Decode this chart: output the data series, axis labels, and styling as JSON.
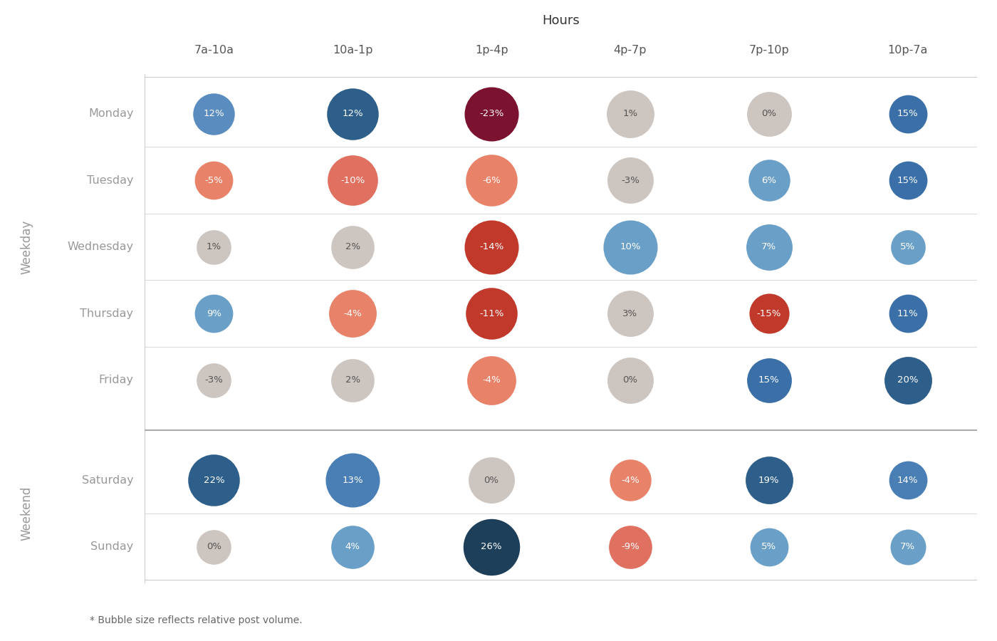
{
  "title": "Hours",
  "weekday_label": "Weekday",
  "weekend_label": "Weekend",
  "footnote": "* Bubble size reflects relative post volume.",
  "columns": [
    "7a-10a",
    "10a-1p",
    "1p-4p",
    "4p-7p",
    "7p-10p",
    "10p-7a"
  ],
  "rows": [
    "Monday",
    "Tuesday",
    "Wednesday",
    "Thursday",
    "Friday",
    "Saturday",
    "Sunday"
  ],
  "values": [
    [
      12,
      12,
      -23,
      1,
      0,
      15
    ],
    [
      -5,
      -10,
      -6,
      -3,
      6,
      15
    ],
    [
      1,
      2,
      -14,
      10,
      7,
      5
    ],
    [
      9,
      -4,
      -11,
      3,
      -15,
      11
    ],
    [
      -3,
      2,
      -4,
      0,
      15,
      20
    ],
    [
      22,
      13,
      0,
      -4,
      19,
      14
    ],
    [
      0,
      4,
      26,
      -9,
      5,
      7
    ]
  ],
  "bubble_sizes": [
    [
      1300,
      2000,
      2200,
      1700,
      1500,
      1100
    ],
    [
      1100,
      1900,
      2000,
      1600,
      1300,
      1100
    ],
    [
      900,
      1400,
      2200,
      2200,
      1600,
      900
    ],
    [
      1100,
      1700,
      2000,
      1600,
      1200,
      1100
    ],
    [
      900,
      1400,
      1800,
      1600,
      1500,
      1700
    ],
    [
      2000,
      2200,
      1600,
      1300,
      1700,
      1100
    ],
    [
      900,
      1400,
      2400,
      1400,
      1100,
      950
    ]
  ],
  "cell_colors": [
    [
      "#5a8cbf",
      "#2e5f8a",
      "#7b1230",
      "#cdc5c0",
      "#cdc5c0",
      "#3a6fa8"
    ],
    [
      "#e8836a",
      "#e07060",
      "#e8836a",
      "#cdc5c0",
      "#6a9fc8",
      "#3a6fa8"
    ],
    [
      "#cdc5c0",
      "#cdc5c0",
      "#c0392b",
      "#6a9fc8",
      "#6a9fc8",
      "#6a9fc8"
    ],
    [
      "#6a9fc8",
      "#e8836a",
      "#c0392b",
      "#cdc5c0",
      "#c0392b",
      "#3a6fa8"
    ],
    [
      "#cdc5c0",
      "#cdc5c0",
      "#e8836a",
      "#cdc5c0",
      "#3a6fa8",
      "#2e5f8a"
    ],
    [
      "#2e5f8a",
      "#4a7fb5",
      "#cdc5c0",
      "#e8836a",
      "#2e5f8a",
      "#4a7fb5"
    ],
    [
      "#cdc5c0",
      "#6a9fc8",
      "#1e3f5a",
      "#e07060",
      "#6a9fc8",
      "#6a9fc8"
    ]
  ],
  "cell_text_dark": [
    [
      false,
      false,
      false,
      true,
      true,
      false
    ],
    [
      false,
      false,
      false,
      true,
      false,
      false
    ],
    [
      true,
      true,
      false,
      false,
      false,
      false
    ],
    [
      false,
      false,
      false,
      true,
      false,
      false
    ],
    [
      true,
      true,
      false,
      true,
      false,
      false
    ],
    [
      false,
      false,
      true,
      false,
      false,
      false
    ],
    [
      true,
      false,
      false,
      false,
      false,
      false
    ]
  ],
  "bg_color": "#ffffff",
  "line_color": "#cccccc",
  "divider_color": "#aaaaaa",
  "label_color": "#999999",
  "header_color": "#555555",
  "title_color": "#333333"
}
